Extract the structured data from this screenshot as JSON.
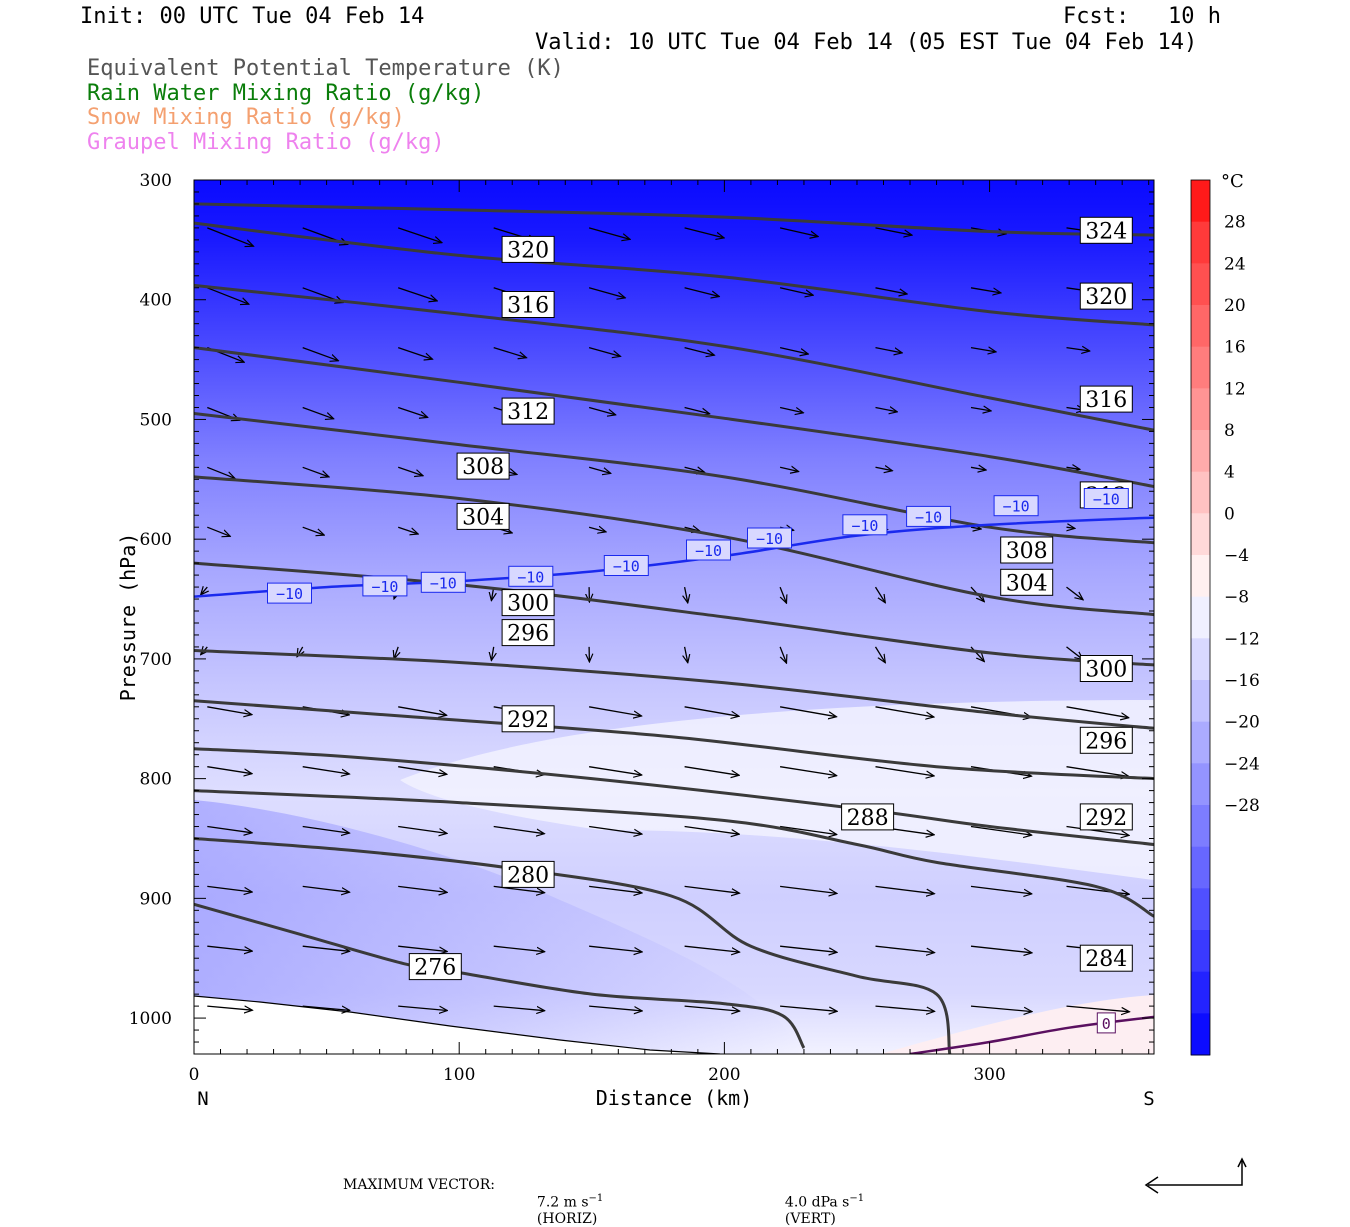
{
  "header": {
    "init": "Init: 00 UTC Tue 04 Feb 14",
    "fcst_label": "Fcst:",
    "fcst_value": "10 h",
    "valid": "Valid: 10 UTC Tue 04 Feb 14 (05 EST Tue 04 Feb 14)",
    "legend": [
      {
        "label": "Equivalent Potential Temperature (K)",
        "color": "#555555"
      },
      {
        "label": "Rain Water Mixing Ratio (g/kg)",
        "color": "#0a7d0a"
      },
      {
        "label": "Snow Mixing Ratio (g/kg)",
        "color": "#f4a070"
      },
      {
        "label": "Graupel Mixing Ratio (g/kg)",
        "color": "#ee82ee"
      }
    ]
  },
  "colorbar": {
    "unit": "°C",
    "labels": [
      "28",
      "24",
      "20",
      "16",
      "12",
      "8",
      "4",
      "0",
      "−4",
      "−8",
      "−12",
      "−16",
      "−20",
      "−24",
      "−28"
    ],
    "colors_top_to_bottom": [
      "#ff1a1a",
      "#ff3a3a",
      "#ff5050",
      "#ff6767",
      "#ff7d7d",
      "#ff9494",
      "#ffabab",
      "#ffc2c2",
      "#ffd9d9",
      "#fff0f0",
      "#f0f0ff",
      "#d9d9ff",
      "#c2c2ff",
      "#ababff",
      "#9494ff",
      "#7d7dff",
      "#6767ff",
      "#5050ff",
      "#3a3aff",
      "#2323ff",
      "#0c0cff"
    ]
  },
  "footer": {
    "max_vector_label": "MAXIMUM VECTOR:",
    "horiz_value": "7.2 m s",
    "horiz_unit": "(HORIZ)",
    "vert_value": "4.0 dPa s",
    "vert_unit": "(VERT)",
    "exponent": "−1"
  },
  "chart_data": {
    "type": "cross-section contour",
    "xlabel": "Distance (km)",
    "ylabel": "Pressure (hPa)",
    "x_ticks": [
      0,
      100,
      200,
      300
    ],
    "y_ticks": [
      300,
      400,
      500,
      600,
      700,
      800,
      900,
      1000
    ],
    "xlim": [
      0,
      362
    ],
    "ylim": [
      1030,
      300
    ],
    "x_end_labels": {
      "left": "N",
      "right": "S"
    },
    "temperature_colorbar_range": [
      -32,
      32
    ],
    "theta_e_contours": [
      {
        "value": 276,
        "points": [
          [
            0,
            905
          ],
          [
            40,
            930
          ],
          [
            80,
            955
          ],
          [
            100,
            962
          ],
          [
            150,
            980
          ],
          [
            200,
            988
          ],
          [
            222,
            998
          ],
          [
            230,
            1025
          ]
        ],
        "labels": [
          [
            91,
            957
          ]
        ]
      },
      {
        "value": 280,
        "points": [
          [
            0,
            850
          ],
          [
            60,
            860
          ],
          [
            120,
            875
          ],
          [
            180,
            898
          ],
          [
            210,
            940
          ],
          [
            250,
            965
          ],
          [
            280,
            980
          ],
          [
            285,
            1030
          ]
        ],
        "labels": [
          [
            126,
            880
          ]
        ]
      },
      {
        "value": 284,
        "points": [
          [
            0,
            810
          ],
          [
            100,
            820
          ],
          [
            200,
            835
          ],
          [
            250,
            855
          ],
          [
            280,
            870
          ],
          [
            340,
            890
          ],
          [
            362,
            915
          ]
        ],
        "labels": [
          [
            344,
            950
          ]
        ]
      },
      {
        "value": 288,
        "points": [
          [
            0,
            775
          ],
          [
            60,
            782
          ],
          [
            150,
            800
          ],
          [
            250,
            825
          ],
          [
            300,
            840
          ],
          [
            362,
            855
          ]
        ],
        "labels": [
          [
            254,
            832
          ]
        ]
      },
      {
        "value": 292,
        "points": [
          [
            0,
            735
          ],
          [
            80,
            748
          ],
          [
            180,
            765
          ],
          [
            280,
            790
          ],
          [
            362,
            800
          ]
        ],
        "labels": [
          [
            126,
            750
          ],
          [
            344,
            832
          ]
        ]
      },
      {
        "value": 296,
        "points": [
          [
            0,
            693
          ],
          [
            100,
            703
          ],
          [
            200,
            720
          ],
          [
            300,
            745
          ],
          [
            362,
            758
          ]
        ],
        "labels": [
          [
            126,
            678
          ],
          [
            344,
            768
          ]
        ]
      },
      {
        "value": 300,
        "points": [
          [
            0,
            620
          ],
          [
            100,
            638
          ],
          [
            200,
            665
          ],
          [
            300,
            695
          ],
          [
            362,
            705
          ]
        ],
        "labels": [
          [
            126,
            653
          ],
          [
            344,
            708
          ]
        ]
      },
      {
        "value": 304,
        "points": [
          [
            0,
            548
          ],
          [
            100,
            566
          ],
          [
            200,
            598
          ],
          [
            300,
            648
          ],
          [
            362,
            663
          ]
        ],
        "labels": [
          [
            109,
            581
          ],
          [
            314,
            636
          ]
        ]
      },
      {
        "value": 308,
        "points": [
          [
            0,
            495
          ],
          [
            100,
            521
          ],
          [
            200,
            548
          ],
          [
            300,
            590
          ],
          [
            362,
            603
          ]
        ],
        "labels": [
          [
            109,
            539
          ],
          [
            314,
            609
          ]
        ]
      },
      {
        "value": 312,
        "points": [
          [
            0,
            440
          ],
          [
            100,
            469
          ],
          [
            200,
            499
          ],
          [
            300,
            531
          ],
          [
            362,
            556
          ]
        ],
        "labels": [
          [
            126,
            493
          ],
          [
            344,
            563
          ]
        ]
      },
      {
        "value": 316,
        "points": [
          [
            0,
            388
          ],
          [
            100,
            412
          ],
          [
            200,
            439
          ],
          [
            300,
            482
          ],
          [
            362,
            509
          ]
        ],
        "labels": [
          [
            126,
            404
          ],
          [
            344,
            483
          ]
        ]
      },
      {
        "value": 320,
        "points": [
          [
            0,
            336
          ],
          [
            100,
            363
          ],
          [
            200,
            381
          ],
          [
            300,
            410
          ],
          [
            362,
            421
          ]
        ],
        "labels": [
          [
            126,
            358
          ],
          [
            344,
            397
          ]
        ]
      },
      {
        "value": 324,
        "points": [
          [
            0,
            320
          ],
          [
            100,
            325
          ],
          [
            200,
            331
          ],
          [
            300,
            343
          ],
          [
            362,
            346
          ]
        ],
        "labels": [
          [
            344,
            342
          ]
        ]
      }
    ],
    "temperature_contours": [
      {
        "value": -10,
        "points": [
          [
            0,
            648
          ],
          [
            50,
            640
          ],
          [
            100,
            635
          ],
          [
            150,
            627
          ],
          [
            200,
            614
          ],
          [
            250,
            597
          ],
          [
            300,
            588
          ],
          [
            362,
            582
          ]
        ],
        "labels": [
          [
            36,
            645
          ],
          [
            72,
            639
          ],
          [
            94,
            636
          ],
          [
            127,
            631
          ],
          [
            163,
            622
          ],
          [
            194,
            609
          ],
          [
            217,
            599
          ],
          [
            253,
            588
          ],
          [
            277,
            581
          ],
          [
            310,
            572
          ],
          [
            344,
            566
          ]
        ]
      },
      {
        "value": 0,
        "points": [
          [
            270,
            1030
          ],
          [
            300,
            1020
          ],
          [
            330,
            1008
          ],
          [
            362,
            999
          ]
        ],
        "labels": [
          [
            344,
            1004
          ]
        ]
      }
    ],
    "wind_vectors_note": "arrows of horizontal wind / vertical motion on a regular grid; maximum vector 7.2 m s-1 (horiz), 4.0 dPa s-1 (vert)"
  }
}
